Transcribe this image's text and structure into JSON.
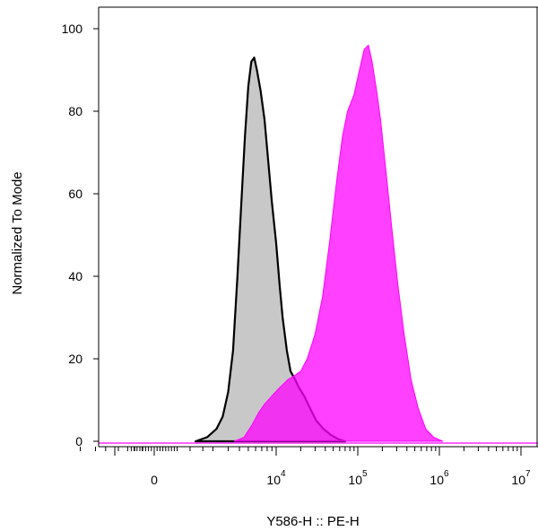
{
  "chart_data": {
    "type": "area",
    "xlabel": "Y586-H :: PE-H",
    "ylabel": "Normalized To Mode",
    "x_scale": "biexponential",
    "ylim": [
      0,
      100
    ],
    "yticks": [
      0,
      20,
      40,
      60,
      80,
      100
    ],
    "xticks": [
      {
        "base": "0",
        "exp": "",
        "value": 0
      },
      {
        "base": "10",
        "exp": "4",
        "value": 10000
      },
      {
        "base": "10",
        "exp": "5",
        "value": 100000
      },
      {
        "base": "10",
        "exp": "6",
        "value": 1000000
      },
      {
        "base": "10",
        "exp": "7",
        "value": 10000000
      }
    ],
    "grid": false,
    "series": [
      {
        "fill": "#c8c8c8",
        "stroke": "#000000",
        "points": [
          [
            1200,
            0
          ],
          [
            1700,
            1
          ],
          [
            2200,
            3
          ],
          [
            2600,
            6
          ],
          [
            3000,
            12
          ],
          [
            3400,
            22
          ],
          [
            3800,
            40
          ],
          [
            4200,
            58
          ],
          [
            4600,
            74
          ],
          [
            5000,
            86
          ],
          [
            5400,
            92
          ],
          [
            5800,
            93
          ],
          [
            6200,
            90
          ],
          [
            6800,
            85
          ],
          [
            7500,
            78
          ],
          [
            8200,
            68
          ],
          [
            9000,
            58
          ],
          [
            10000,
            48
          ],
          [
            11000,
            38
          ],
          [
            12000,
            30
          ],
          [
            13500,
            22
          ],
          [
            15000,
            17
          ],
          [
            17000,
            15
          ],
          [
            19000,
            13
          ],
          [
            22000,
            11
          ],
          [
            26000,
            8
          ],
          [
            31000,
            5
          ],
          [
            38000,
            3
          ],
          [
            47000,
            1.5
          ],
          [
            58000,
            0.5
          ],
          [
            70000,
            0
          ]
        ]
      },
      {
        "fill": "#ff00ff",
        "stroke": "#ff00ff",
        "points": [
          [
            3500,
            0
          ],
          [
            4500,
            1
          ],
          [
            5500,
            4
          ],
          [
            6500,
            7
          ],
          [
            7500,
            9
          ],
          [
            9000,
            11
          ],
          [
            11000,
            13
          ],
          [
            14000,
            15
          ],
          [
            17000,
            16
          ],
          [
            20000,
            17
          ],
          [
            24000,
            20
          ],
          [
            30000,
            26
          ],
          [
            37000,
            35
          ],
          [
            45000,
            48
          ],
          [
            55000,
            63
          ],
          [
            65000,
            74
          ],
          [
            75000,
            80
          ],
          [
            90000,
            84
          ],
          [
            105000,
            90
          ],
          [
            120000,
            95
          ],
          [
            135000,
            96
          ],
          [
            150000,
            92
          ],
          [
            170000,
            85
          ],
          [
            190000,
            78
          ],
          [
            220000,
            66
          ],
          [
            260000,
            52
          ],
          [
            310000,
            38
          ],
          [
            370000,
            26
          ],
          [
            450000,
            15
          ],
          [
            550000,
            8
          ],
          [
            680000,
            3
          ],
          [
            850000,
            1
          ],
          [
            1100000,
            0
          ]
        ]
      }
    ]
  }
}
